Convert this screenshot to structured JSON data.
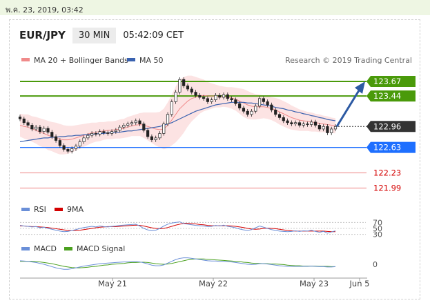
{
  "date_text": "พ.ค. 23, 2019, 03:42",
  "header": {
    "pair": "EUR/JPY",
    "timeframe": "30 MIN",
    "time": "05:42:09 CET"
  },
  "legend": {
    "ma20": "MA 20 + Bollinger Bands",
    "ma50": "MA 50"
  },
  "credit": "Research © 2019 Trading Central",
  "colors": {
    "resistance": "#4a9a0a",
    "current": "#333333",
    "support": "#1e6fff",
    "support_weak": "#f2a5a5",
    "support_text": "#d40000",
    "ma20": "#f08a8a",
    "ma50": "#3a62b0",
    "arrow": "#2d5aa3"
  },
  "chart_data": [
    {
      "type": "line",
      "title": "EUR/JPY 30 MIN",
      "series": [
        {
          "name": "MA 20 + Bollinger Bands"
        },
        {
          "name": "MA 50"
        }
      ],
      "price_levels": [
        {
          "label": "123.67",
          "value": 123.67,
          "kind": "resistance"
        },
        {
          "label": "123.44",
          "value": 123.44,
          "kind": "resistance"
        },
        {
          "label": "122.96",
          "value": 122.96,
          "kind": "current"
        },
        {
          "label": "122.63",
          "value": 122.63,
          "kind": "support"
        },
        {
          "label": "122.23",
          "value": 122.23,
          "kind": "support-weak"
        },
        {
          "label": "121.99",
          "value": 121.99,
          "kind": "support-weak"
        }
      ],
      "x_ticks": [
        "May 21",
        "May 22",
        "May 23",
        "Jun 5"
      ],
      "ylim": [
        121.8,
        123.8
      ],
      "closes": [
        123.08,
        123.02,
        122.98,
        122.92,
        122.95,
        122.88,
        122.93,
        122.87,
        122.8,
        122.74,
        122.66,
        122.6,
        122.57,
        122.61,
        122.65,
        122.72,
        122.78,
        122.82,
        122.85,
        122.84,
        122.88,
        122.86,
        122.85,
        122.88,
        122.9,
        122.95,
        122.98,
        123.0,
        123.02,
        123.05,
        123.0,
        122.9,
        122.8,
        122.75,
        122.78,
        122.85,
        123.0,
        123.15,
        123.35,
        123.5,
        123.7,
        123.6,
        123.55,
        123.5,
        123.45,
        123.42,
        123.4,
        123.35,
        123.38,
        123.45,
        123.42,
        123.46,
        123.4,
        123.38,
        123.32,
        123.25,
        123.2,
        123.15,
        123.2,
        123.28,
        123.4,
        123.35,
        123.3,
        123.22,
        123.15,
        123.1,
        123.05,
        123.02,
        123.0,
        123.02,
        122.98,
        123.0,
        122.99,
        123.03,
        122.98,
        122.92,
        122.96,
        122.86,
        122.92,
        122.96
      ],
      "ma20": [
        122.98,
        122.96,
        122.95,
        122.92,
        122.9,
        122.87,
        122.85,
        122.82,
        122.8,
        122.78,
        122.76,
        122.75,
        122.75,
        122.76,
        122.78,
        122.8,
        122.82,
        122.84,
        122.86,
        122.87,
        122.88,
        122.89,
        122.9,
        122.9,
        122.91,
        122.92,
        122.93,
        122.95,
        122.97,
        122.98,
        122.99,
        122.98,
        122.96,
        122.94,
        122.92,
        122.91,
        122.92,
        122.98,
        123.06,
        123.15,
        123.24,
        123.3,
        123.36,
        123.4,
        123.42,
        123.44,
        123.45,
        123.44,
        123.44,
        123.44,
        123.43,
        123.43,
        123.42,
        123.41,
        123.39,
        123.36,
        123.33,
        123.3,
        123.28,
        123.27,
        123.27,
        123.27,
        123.26,
        123.24,
        123.22,
        123.19,
        123.16,
        123.13,
        123.1,
        123.08,
        123.06,
        123.05,
        123.04,
        123.03,
        123.02,
        123.01,
        123.0,
        122.99,
        122.98,
        122.97
      ],
      "ma50": [
        122.72,
        122.73,
        122.74,
        122.75,
        122.76,
        122.77,
        122.78,
        122.78,
        122.79,
        122.79,
        122.8,
        122.8,
        122.81,
        122.81,
        122.82,
        122.82,
        122.83,
        122.83,
        122.84,
        122.84,
        122.85,
        122.85,
        122.86,
        122.86,
        122.87,
        122.87,
        122.88,
        122.89,
        122.89,
        122.9,
        122.91,
        122.92,
        122.93,
        122.94,
        122.95,
        122.96,
        122.98,
        123.0,
        123.02,
        123.05,
        123.08,
        123.11,
        123.14,
        123.17,
        123.2,
        123.22,
        123.24,
        123.26,
        123.28,
        123.3,
        123.31,
        123.32,
        123.33,
        123.34,
        123.34,
        123.34,
        123.34,
        123.33,
        123.33,
        123.32,
        123.31,
        123.3,
        123.29,
        123.28,
        123.26,
        123.25,
        123.24,
        123.22,
        123.21,
        123.19,
        123.18,
        123.16,
        123.15,
        123.13,
        123.12,
        123.1,
        123.09,
        123.07,
        123.06,
        123.05
      ],
      "bb_width": [
        0.18,
        0.19,
        0.2,
        0.2,
        0.21,
        0.22,
        0.22,
        0.23,
        0.23,
        0.24,
        0.24,
        0.23,
        0.22,
        0.21,
        0.2,
        0.19,
        0.18,
        0.17,
        0.16,
        0.15,
        0.15,
        0.14,
        0.14,
        0.14,
        0.14,
        0.15,
        0.15,
        0.16,
        0.16,
        0.17,
        0.18,
        0.2,
        0.22,
        0.24,
        0.26,
        0.28,
        0.32,
        0.36,
        0.4,
        0.44,
        0.46,
        0.44,
        0.4,
        0.36,
        0.32,
        0.28,
        0.25,
        0.22,
        0.2,
        0.18,
        0.17,
        0.16,
        0.16,
        0.17,
        0.18,
        0.2,
        0.22,
        0.22,
        0.21,
        0.2,
        0.19,
        0.18,
        0.18,
        0.18,
        0.19,
        0.2,
        0.2,
        0.2,
        0.19,
        0.18,
        0.17,
        0.16,
        0.15,
        0.15,
        0.14,
        0.14,
        0.13,
        0.13,
        0.12,
        0.12
      ],
      "projection_target": 123.67
    },
    {
      "type": "line",
      "title": "",
      "series": [
        {
          "name": "RSI"
        },
        {
          "name": "9MA"
        }
      ],
      "y_ticks": [
        "70",
        "50",
        "30"
      ],
      "ylim": [
        0,
        100
      ],
      "rsi": [
        60,
        58,
        57,
        55,
        56,
        52,
        54,
        50,
        47,
        44,
        41,
        39,
        40,
        43,
        46,
        50,
        53,
        55,
        57,
        55,
        58,
        56,
        55,
        57,
        58,
        60,
        61,
        62,
        63,
        64,
        58,
        50,
        45,
        42,
        44,
        50,
        58,
        64,
        68,
        70,
        72,
        66,
        64,
        62,
        60,
        59,
        58,
        56,
        57,
        60,
        58,
        61,
        57,
        55,
        52,
        48,
        45,
        43,
        46,
        52,
        58,
        54,
        50,
        46,
        43,
        41,
        40,
        39,
        40,
        42,
        40,
        42,
        41,
        44,
        40,
        37,
        40,
        34,
        38,
        42
      ],
      "ma9": [
        58,
        58,
        57,
        56,
        56,
        55,
        54,
        53,
        51,
        49,
        47,
        45,
        43,
        43,
        43,
        44,
        46,
        48,
        50,
        52,
        54,
        55,
        56,
        56,
        56,
        57,
        58,
        59,
        60,
        61,
        60,
        58,
        55,
        52,
        50,
        49,
        50,
        53,
        57,
        61,
        64,
        67,
        67,
        66,
        65,
        63,
        62,
        60,
        59,
        59,
        59,
        59,
        59,
        58,
        57,
        55,
        53,
        50,
        48,
        47,
        48,
        50,
        51,
        50,
        49,
        47,
        45,
        43,
        42,
        41,
        41,
        41,
        41,
        41,
        41,
        41,
        41,
        40,
        39,
        39
      ]
    },
    {
      "type": "line",
      "title": "",
      "series": [
        {
          "name": "MACD"
        },
        {
          "name": "MACD Signal"
        }
      ],
      "y_ticks": [
        "0"
      ],
      "ylim": [
        -0.35,
        0.35
      ],
      "macd": [
        0.12,
        0.11,
        0.1,
        0.08,
        0.06,
        0.03,
        0.0,
        -0.04,
        -0.08,
        -0.12,
        -0.15,
        -0.17,
        -0.17,
        -0.15,
        -0.12,
        -0.09,
        -0.06,
        -0.04,
        -0.02,
        0.0,
        0.02,
        0.03,
        0.04,
        0.05,
        0.06,
        0.07,
        0.08,
        0.08,
        0.09,
        0.09,
        0.08,
        0.05,
        0.01,
        -0.03,
        -0.05,
        -0.05,
        -0.02,
        0.04,
        0.1,
        0.16,
        0.2,
        0.22,
        0.22,
        0.2,
        0.18,
        0.16,
        0.14,
        0.12,
        0.11,
        0.11,
        0.1,
        0.1,
        0.09,
        0.08,
        0.06,
        0.04,
        0.02,
        0.0,
        -0.01,
        0.0,
        0.02,
        0.02,
        0.01,
        -0.01,
        -0.03,
        -0.05,
        -0.06,
        -0.07,
        -0.07,
        -0.07,
        -0.07,
        -0.07,
        -0.07,
        -0.06,
        -0.07,
        -0.08,
        -0.08,
        -0.09,
        -0.09,
        -0.08
      ],
      "signal": [
        0.1,
        0.1,
        0.1,
        0.1,
        0.09,
        0.08,
        0.06,
        0.04,
        0.02,
        -0.01,
        -0.04,
        -0.07,
        -0.09,
        -0.11,
        -0.12,
        -0.12,
        -0.11,
        -0.1,
        -0.08,
        -0.07,
        -0.05,
        -0.03,
        -0.02,
        0.0,
        0.01,
        0.02,
        0.03,
        0.05,
        0.06,
        0.06,
        0.07,
        0.07,
        0.06,
        0.04,
        0.02,
        0.01,
        0.0,
        0.01,
        0.03,
        0.06,
        0.09,
        0.12,
        0.15,
        0.17,
        0.18,
        0.18,
        0.18,
        0.17,
        0.16,
        0.15,
        0.14,
        0.13,
        0.12,
        0.11,
        0.1,
        0.09,
        0.07,
        0.06,
        0.04,
        0.03,
        0.03,
        0.02,
        0.02,
        0.01,
        0.01,
        0.0,
        -0.01,
        -0.03,
        -0.04,
        -0.05,
        -0.05,
        -0.06,
        -0.06,
        -0.06,
        -0.06,
        -0.07,
        -0.07,
        -0.07,
        -0.08,
        -0.08
      ]
    }
  ]
}
